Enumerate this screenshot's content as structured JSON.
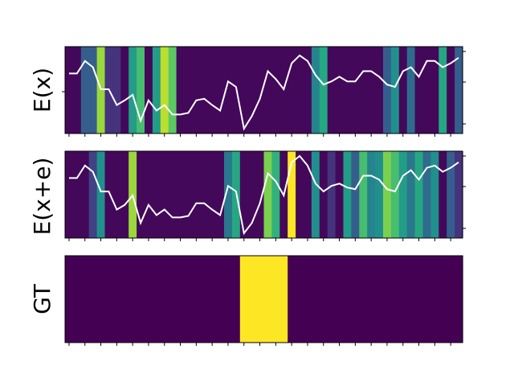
{
  "chart_data": [
    {
      "type": "heatmap",
      "ylabel": "E(x)",
      "n_columns": 50,
      "cells": [
        0.02,
        0.02,
        0.3,
        0.3,
        0.85,
        0.15,
        0.15,
        0.02,
        0.55,
        0.7,
        0.02,
        0.55,
        0.9,
        0.75,
        0.02,
        0.02,
        0.02,
        0.02,
        0.02,
        0.02,
        0.02,
        0.02,
        0.02,
        0.02,
        0.02,
        0.02,
        0.02,
        0.02,
        0.02,
        0.02,
        0.02,
        0.45,
        0.6,
        0.02,
        0.02,
        0.02,
        0.02,
        0.02,
        0.02,
        0.02,
        0.3,
        0.5,
        0.02,
        0.35,
        0.02,
        0.02,
        0.02,
        0.6,
        0.02,
        0.3
      ],
      "line": [
        0.72,
        0.72,
        0.88,
        0.8,
        0.52,
        0.52,
        0.32,
        0.38,
        0.45,
        0.12,
        0.38,
        0.25,
        0.32,
        0.2,
        0.2,
        0.22,
        0.38,
        0.4,
        0.32,
        0.25,
        0.62,
        0.55,
        0.02,
        0.18,
        0.4,
        0.75,
        0.65,
        0.52,
        0.85,
        0.95,
        0.88,
        0.7,
        0.58,
        0.62,
        0.68,
        0.62,
        0.62,
        0.75,
        0.75,
        0.68,
        0.58,
        0.55,
        0.75,
        0.8,
        0.68,
        0.88,
        0.88,
        0.8,
        0.85,
        0.92
      ],
      "line_range": [
        0,
        1
      ]
    },
    {
      "type": "heatmap",
      "ylabel": "E(x+e)",
      "n_columns": 50,
      "cells": [
        0.02,
        0.02,
        0.02,
        0.2,
        0.5,
        0.02,
        0.02,
        0.02,
        0.85,
        0.02,
        0.02,
        0.02,
        0.02,
        0.02,
        0.02,
        0.02,
        0.02,
        0.02,
        0.02,
        0.02,
        0.4,
        0.6,
        0.02,
        0.02,
        0.02,
        0.8,
        0.65,
        0.02,
        1.0,
        0.02,
        0.02,
        0.5,
        0.02,
        0.15,
        0.02,
        0.55,
        0.3,
        0.7,
        0.45,
        0.5,
        0.8,
        0.7,
        0.55,
        0.4,
        0.6,
        0.35,
        0.5,
        0.02,
        0.3,
        0.15
      ],
      "line": [
        0.72,
        0.72,
        0.88,
        0.8,
        0.55,
        0.55,
        0.32,
        0.38,
        0.5,
        0.15,
        0.38,
        0.25,
        0.32,
        0.22,
        0.22,
        0.24,
        0.4,
        0.4,
        0.32,
        0.25,
        0.62,
        0.55,
        0.02,
        0.15,
        0.4,
        0.78,
        0.68,
        0.5,
        0.92,
        1.0,
        0.88,
        0.65,
        0.55,
        0.62,
        0.65,
        0.6,
        0.58,
        0.75,
        0.75,
        0.7,
        0.58,
        0.55,
        0.75,
        0.82,
        0.7,
        0.85,
        0.88,
        0.8,
        0.85,
        0.92
      ],
      "line_range": [
        0,
        1
      ]
    },
    {
      "type": "heatmap",
      "ylabel": "GT",
      "n_columns": 50,
      "cells": [
        0,
        0,
        0,
        0,
        0,
        0,
        0,
        0,
        0,
        0,
        0,
        0,
        0,
        0,
        0,
        0,
        0,
        0,
        0,
        0,
        0,
        0,
        1,
        1,
        1,
        1,
        1,
        1,
        0,
        0,
        0,
        0,
        0,
        0,
        0,
        0,
        0,
        0,
        0,
        0,
        0,
        0,
        0,
        0,
        0,
        0,
        0,
        0,
        0,
        0
      ]
    }
  ],
  "colors": {
    "colormap": [
      "#440154",
      "#472c7a",
      "#3b518b",
      "#2c718e",
      "#21908d",
      "#27ad81",
      "#5cc863",
      "#aadc32",
      "#fde725"
    ],
    "line": "#ffffff"
  }
}
